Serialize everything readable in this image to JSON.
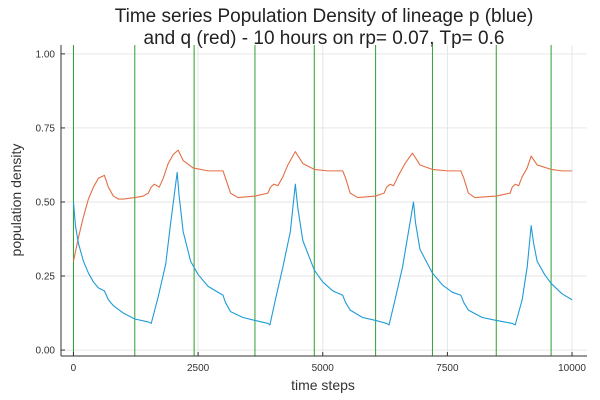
{
  "chart_data": {
    "type": "line",
    "title_lines": [
      "Time series Population Density of lineage p (blue)",
      "and q (red) - 10 hours on rp= 0.07, Tp= 0.6"
    ],
    "xlabel": "time steps",
    "ylabel": "population density",
    "xlim": [
      -250,
      10300
    ],
    "ylim": [
      -0.02,
      1.03
    ],
    "xticks": [
      0,
      2500,
      5000,
      7500,
      10000
    ],
    "xtick_labels": [
      "0",
      "2500",
      "5000",
      "7500",
      "10000"
    ],
    "yticks": [
      0,
      0.25,
      0.5,
      0.75,
      1.0
    ],
    "ytick_labels": [
      "0.00",
      "0.25",
      "0.50",
      "0.75",
      "1.00"
    ],
    "grid": true,
    "vlines": {
      "color": "#2ca02c",
      "x": [
        0,
        1230,
        2420,
        3640,
        4830,
        6060,
        7200,
        8480,
        9580
      ]
    },
    "series": [
      {
        "color": "#e26f46",
        "points": [
          [
            0,
            0.3
          ],
          [
            100,
            0.38
          ],
          [
            200,
            0.45
          ],
          [
            300,
            0.51
          ],
          [
            400,
            0.55
          ],
          [
            500,
            0.58
          ],
          [
            620,
            0.59
          ],
          [
            700,
            0.55
          ],
          [
            800,
            0.52
          ],
          [
            900,
            0.51
          ],
          [
            1000,
            0.51
          ],
          [
            1230,
            0.515
          ],
          [
            1400,
            0.52
          ],
          [
            1500,
            0.53
          ],
          [
            1560,
            0.55
          ],
          [
            1620,
            0.56
          ],
          [
            1720,
            0.55
          ],
          [
            1800,
            0.58
          ],
          [
            1900,
            0.63
          ],
          [
            2000,
            0.66
          ],
          [
            2100,
            0.675
          ],
          [
            2200,
            0.64
          ],
          [
            2400,
            0.615
          ],
          [
            2700,
            0.605
          ],
          [
            3000,
            0.605
          ],
          [
            3050,
            0.58
          ],
          [
            3150,
            0.53
          ],
          [
            3300,
            0.515
          ],
          [
            3640,
            0.52
          ],
          [
            3900,
            0.53
          ],
          [
            3950,
            0.55
          ],
          [
            4020,
            0.56
          ],
          [
            4100,
            0.555
          ],
          [
            4200,
            0.585
          ],
          [
            4300,
            0.625
          ],
          [
            4450,
            0.67
          ],
          [
            4600,
            0.63
          ],
          [
            4830,
            0.61
          ],
          [
            5100,
            0.605
          ],
          [
            5400,
            0.605
          ],
          [
            5460,
            0.58
          ],
          [
            5550,
            0.53
          ],
          [
            5700,
            0.515
          ],
          [
            6060,
            0.52
          ],
          [
            6230,
            0.53
          ],
          [
            6280,
            0.55
          ],
          [
            6350,
            0.56
          ],
          [
            6420,
            0.555
          ],
          [
            6520,
            0.59
          ],
          [
            6650,
            0.63
          ],
          [
            6800,
            0.665
          ],
          [
            6950,
            0.625
          ],
          [
            7200,
            0.61
          ],
          [
            7500,
            0.605
          ],
          [
            7770,
            0.605
          ],
          [
            7830,
            0.58
          ],
          [
            7920,
            0.53
          ],
          [
            8050,
            0.515
          ],
          [
            8480,
            0.52
          ],
          [
            8760,
            0.53
          ],
          [
            8800,
            0.55
          ],
          [
            8860,
            0.56
          ],
          [
            8930,
            0.555
          ],
          [
            9000,
            0.585
          ],
          [
            9100,
            0.615
          ],
          [
            9180,
            0.655
          ],
          [
            9300,
            0.625
          ],
          [
            9580,
            0.61
          ],
          [
            9800,
            0.605
          ],
          [
            10000,
            0.605
          ]
        ]
      },
      {
        "color": "#1f9bd6",
        "points": [
          [
            0,
            0.5
          ],
          [
            40,
            0.42
          ],
          [
            100,
            0.36
          ],
          [
            200,
            0.3
          ],
          [
            300,
            0.26
          ],
          [
            400,
            0.23
          ],
          [
            500,
            0.21
          ],
          [
            620,
            0.2
          ],
          [
            700,
            0.17
          ],
          [
            800,
            0.15
          ],
          [
            1000,
            0.125
          ],
          [
            1230,
            0.105
          ],
          [
            1500,
            0.095
          ],
          [
            1560,
            0.09
          ],
          [
            1700,
            0.18
          ],
          [
            1850,
            0.29
          ],
          [
            1950,
            0.43
          ],
          [
            2080,
            0.6
          ],
          [
            2120,
            0.52
          ],
          [
            2200,
            0.4
          ],
          [
            2350,
            0.3
          ],
          [
            2500,
            0.255
          ],
          [
            2700,
            0.215
          ],
          [
            3000,
            0.185
          ],
          [
            3050,
            0.16
          ],
          [
            3150,
            0.13
          ],
          [
            3400,
            0.11
          ],
          [
            3640,
            0.1
          ],
          [
            3900,
            0.09
          ],
          [
            3940,
            0.085
          ],
          [
            4050,
            0.17
          ],
          [
            4200,
            0.28
          ],
          [
            4350,
            0.4
          ],
          [
            4450,
            0.56
          ],
          [
            4500,
            0.48
          ],
          [
            4600,
            0.37
          ],
          [
            4830,
            0.27
          ],
          [
            5000,
            0.23
          ],
          [
            5200,
            0.2
          ],
          [
            5400,
            0.185
          ],
          [
            5460,
            0.16
          ],
          [
            5550,
            0.135
          ],
          [
            5800,
            0.11
          ],
          [
            6060,
            0.1
          ],
          [
            6280,
            0.09
          ],
          [
            6330,
            0.085
          ],
          [
            6450,
            0.17
          ],
          [
            6600,
            0.28
          ],
          [
            6700,
            0.38
          ],
          [
            6820,
            0.5
          ],
          [
            6860,
            0.43
          ],
          [
            6950,
            0.34
          ],
          [
            7200,
            0.26
          ],
          [
            7400,
            0.22
          ],
          [
            7600,
            0.195
          ],
          [
            7770,
            0.185
          ],
          [
            7830,
            0.16
          ],
          [
            7920,
            0.135
          ],
          [
            8200,
            0.11
          ],
          [
            8480,
            0.1
          ],
          [
            8800,
            0.09
          ],
          [
            8860,
            0.085
          ],
          [
            9000,
            0.17
          ],
          [
            9100,
            0.28
          ],
          [
            9180,
            0.42
          ],
          [
            9230,
            0.36
          ],
          [
            9300,
            0.3
          ],
          [
            9450,
            0.255
          ],
          [
            9580,
            0.225
          ],
          [
            9800,
            0.19
          ],
          [
            10000,
            0.17
          ]
        ]
      }
    ]
  }
}
